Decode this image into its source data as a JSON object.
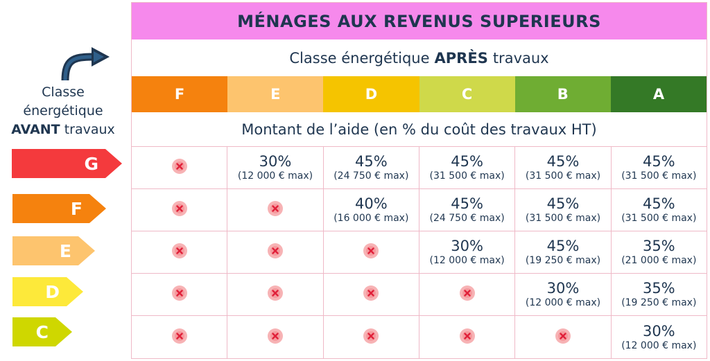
{
  "title": "MÉNAGES AUX REVENUS SUPERIEURS",
  "after_caption": {
    "prefix": "Classe énergétique",
    "bold": "APRÈS",
    "suffix": "travaux"
  },
  "before_caption": {
    "line1": "Classe",
    "line2": "énergétique",
    "bold": "AVANT",
    "suffix": "travaux"
  },
  "aid_caption": "Montant de l’aide (en % du coût des travaux HT)",
  "after_classes": [
    {
      "label": "F",
      "color": "#f5820e"
    },
    {
      "label": "E",
      "color": "#fdc46e"
    },
    {
      "label": "D",
      "color": "#f5c400"
    },
    {
      "label": "C",
      "color": "#cfd94a"
    },
    {
      "label": "B",
      "color": "#6fad33"
    },
    {
      "label": "A",
      "color": "#347926"
    }
  ],
  "before_classes": [
    {
      "label": "G",
      "color": "#f43a3d"
    },
    {
      "label": "F",
      "color": "#f5820e"
    },
    {
      "label": "E",
      "color": "#fdc46e"
    },
    {
      "label": "D",
      "color": "#fde93a"
    },
    {
      "label": "C",
      "color": "#cfd700"
    }
  ],
  "not_eligible_icon": "x-circle-icon",
  "rows": [
    {
      "cells": [
        {
          "na": true
        },
        {
          "pct": "30%",
          "max": "(12 000 € max)"
        },
        {
          "pct": "45%",
          "max": "(24 750 € max)"
        },
        {
          "pct": "45%",
          "max": "(31 500 € max)"
        },
        {
          "pct": "45%",
          "max": "(31 500 € max)"
        },
        {
          "pct": "45%",
          "max": "(31 500 € max)"
        }
      ]
    },
    {
      "cells": [
        {
          "na": true
        },
        {
          "na": true
        },
        {
          "pct": "40%",
          "max": "(16 000 € max)"
        },
        {
          "pct": "45%",
          "max": "(24 750 € max)"
        },
        {
          "pct": "45%",
          "max": "(31 500 € max)"
        },
        {
          "pct": "45%",
          "max": "(31 500 € max)"
        }
      ]
    },
    {
      "cells": [
        {
          "na": true
        },
        {
          "na": true
        },
        {
          "na": true
        },
        {
          "pct": "30%",
          "max": "(12 000 € max)"
        },
        {
          "pct": "45%",
          "max": "(19 250 € max)"
        },
        {
          "pct": "35%",
          "max": "(21 000 € max)"
        }
      ]
    },
    {
      "cells": [
        {
          "na": true
        },
        {
          "na": true
        },
        {
          "na": true
        },
        {
          "na": true
        },
        {
          "pct": "30%",
          "max": "(12 000 € max)"
        },
        {
          "pct": "35%",
          "max": "(19 250 € max)"
        }
      ]
    },
    {
      "cells": [
        {
          "na": true
        },
        {
          "na": true
        },
        {
          "na": true
        },
        {
          "na": true
        },
        {
          "na": true
        },
        {
          "pct": "30%",
          "max": "(12 000 € max)"
        }
      ]
    }
  ]
}
